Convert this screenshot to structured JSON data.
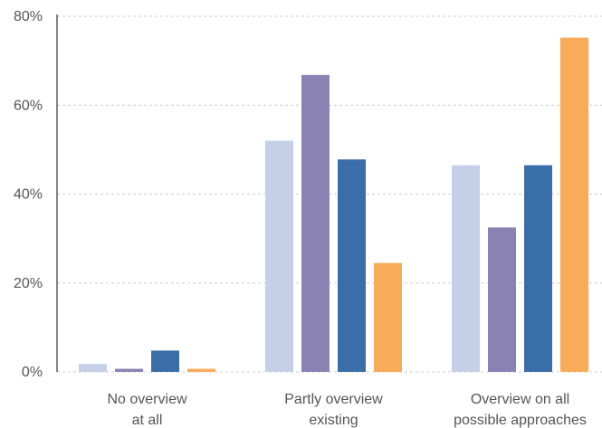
{
  "chart_data": {
    "type": "bar",
    "categories": [
      [
        "No overview",
        "at all"
      ],
      [
        "Partly overview",
        "existing"
      ],
      [
        "Overview on all",
        "possible approaches"
      ]
    ],
    "series": [
      {
        "color": "#c5d0e8",
        "values": [
          1.8,
          52,
          46.5
        ]
      },
      {
        "color": "#8b82b4",
        "values": [
          0.7,
          66.8,
          32.5
        ]
      },
      {
        "color": "#3a6ea8",
        "values": [
          4.8,
          47.8,
          46.5
        ]
      },
      {
        "color": "#f8ac57",
        "values": [
          0.7,
          24.5,
          75.2
        ]
      }
    ],
    "ylim": [
      0,
      80
    ],
    "yticks": [
      0,
      20,
      40,
      60,
      80
    ],
    "ytick_labels": [
      "0%",
      "20%",
      "40%",
      "60%",
      "80%"
    ],
    "grid": true,
    "grid_style": "dashed",
    "legend": "none"
  }
}
